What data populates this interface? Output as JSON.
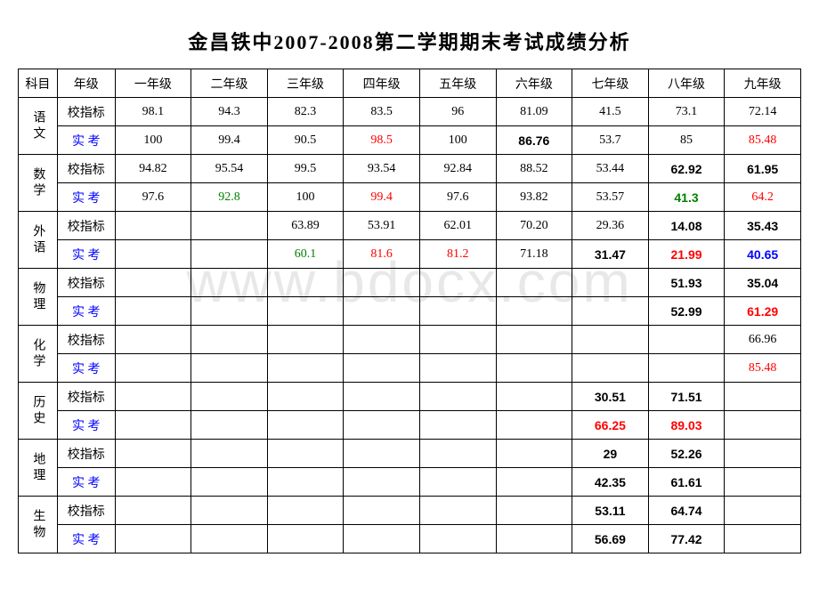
{
  "title": "金昌铁中2007-2008第二学期期末考试成绩分析",
  "watermark": "www.bdocx.com",
  "headers": {
    "subject": "科目",
    "grade_label": "年级",
    "grades": [
      "一年级",
      "二年级",
      "三年级",
      "四年级",
      "五年级",
      "六年级",
      "七年级",
      "八年级",
      "九年级"
    ]
  },
  "row_types": {
    "target": "校指标",
    "actual": "实 考"
  },
  "subjects": [
    {
      "name": "语文",
      "target": [
        {
          "v": "98.1"
        },
        {
          "v": "94.3"
        },
        {
          "v": "82.3"
        },
        {
          "v": "83.5"
        },
        {
          "v": "96"
        },
        {
          "v": "81.09"
        },
        {
          "v": "41.5"
        },
        {
          "v": "73.1"
        },
        {
          "v": "72.14"
        }
      ],
      "actual": [
        {
          "v": "100"
        },
        {
          "v": "99.4"
        },
        {
          "v": "90.5"
        },
        {
          "v": "98.5",
          "c": "red"
        },
        {
          "v": "100"
        },
        {
          "v": "86.76",
          "b": true
        },
        {
          "v": "53.7"
        },
        {
          "v": "85"
        },
        {
          "v": "85.48",
          "c": "red"
        }
      ]
    },
    {
      "name": "数学",
      "target": [
        {
          "v": "94.82"
        },
        {
          "v": "95.54"
        },
        {
          "v": "99.5"
        },
        {
          "v": "93.54"
        },
        {
          "v": "92.84"
        },
        {
          "v": "88.52"
        },
        {
          "v": "53.44"
        },
        {
          "v": "62.92",
          "b": true
        },
        {
          "v": "61.95",
          "b": true
        }
      ],
      "actual": [
        {
          "v": "97.6"
        },
        {
          "v": "92.8",
          "c": "green"
        },
        {
          "v": "100"
        },
        {
          "v": "99.4",
          "c": "red"
        },
        {
          "v": "97.6"
        },
        {
          "v": "93.82"
        },
        {
          "v": "53.57"
        },
        {
          "v": "41.3",
          "c": "green",
          "b": true
        },
        {
          "v": "64.2",
          "c": "red"
        }
      ]
    },
    {
      "name": "外语",
      "target": [
        {
          "v": ""
        },
        {
          "v": ""
        },
        {
          "v": "63.89"
        },
        {
          "v": "53.91"
        },
        {
          "v": "62.01"
        },
        {
          "v": "70.20"
        },
        {
          "v": "29.36"
        },
        {
          "v": "14.08",
          "b": true
        },
        {
          "v": "35.43",
          "b": true
        }
      ],
      "actual": [
        {
          "v": ""
        },
        {
          "v": ""
        },
        {
          "v": "60.1",
          "c": "green"
        },
        {
          "v": "81.6",
          "c": "red"
        },
        {
          "v": "81.2",
          "c": "red"
        },
        {
          "v": "71.18"
        },
        {
          "v": "31.47",
          "b": true
        },
        {
          "v": "21.99",
          "c": "red",
          "b": true
        },
        {
          "v": "40.65",
          "c": "blue",
          "b": true
        }
      ]
    },
    {
      "name": "物理",
      "target": [
        {
          "v": ""
        },
        {
          "v": ""
        },
        {
          "v": ""
        },
        {
          "v": ""
        },
        {
          "v": ""
        },
        {
          "v": ""
        },
        {
          "v": ""
        },
        {
          "v": "51.93",
          "b": true
        },
        {
          "v": "35.04",
          "b": true
        }
      ],
      "actual": [
        {
          "v": ""
        },
        {
          "v": ""
        },
        {
          "v": ""
        },
        {
          "v": ""
        },
        {
          "v": ""
        },
        {
          "v": ""
        },
        {
          "v": ""
        },
        {
          "v": "52.99",
          "b": true
        },
        {
          "v": "61.29",
          "c": "red",
          "b": true
        }
      ]
    },
    {
      "name": "化学",
      "target": [
        {
          "v": ""
        },
        {
          "v": ""
        },
        {
          "v": ""
        },
        {
          "v": ""
        },
        {
          "v": ""
        },
        {
          "v": ""
        },
        {
          "v": ""
        },
        {
          "v": ""
        },
        {
          "v": "66.96"
        }
      ],
      "actual": [
        {
          "v": ""
        },
        {
          "v": ""
        },
        {
          "v": ""
        },
        {
          "v": ""
        },
        {
          "v": ""
        },
        {
          "v": ""
        },
        {
          "v": ""
        },
        {
          "v": ""
        },
        {
          "v": "85.48",
          "c": "red"
        }
      ]
    },
    {
      "name": "历史",
      "target": [
        {
          "v": ""
        },
        {
          "v": ""
        },
        {
          "v": ""
        },
        {
          "v": ""
        },
        {
          "v": ""
        },
        {
          "v": ""
        },
        {
          "v": "30.51",
          "b": true
        },
        {
          "v": "71.51",
          "b": true
        },
        {
          "v": ""
        }
      ],
      "actual": [
        {
          "v": ""
        },
        {
          "v": ""
        },
        {
          "v": ""
        },
        {
          "v": ""
        },
        {
          "v": ""
        },
        {
          "v": ""
        },
        {
          "v": "66.25",
          "c": "red",
          "b": true
        },
        {
          "v": "89.03",
          "c": "red",
          "b": true
        },
        {
          "v": ""
        }
      ]
    },
    {
      "name": "地理",
      "target": [
        {
          "v": ""
        },
        {
          "v": ""
        },
        {
          "v": ""
        },
        {
          "v": ""
        },
        {
          "v": ""
        },
        {
          "v": ""
        },
        {
          "v": "29",
          "b": true
        },
        {
          "v": "52.26",
          "b": true
        },
        {
          "v": ""
        }
      ],
      "actual": [
        {
          "v": ""
        },
        {
          "v": ""
        },
        {
          "v": ""
        },
        {
          "v": ""
        },
        {
          "v": ""
        },
        {
          "v": ""
        },
        {
          "v": "42.35",
          "b": true
        },
        {
          "v": "61.61",
          "b": true
        },
        {
          "v": ""
        }
      ]
    },
    {
      "name": "生物",
      "target": [
        {
          "v": ""
        },
        {
          "v": ""
        },
        {
          "v": ""
        },
        {
          "v": ""
        },
        {
          "v": ""
        },
        {
          "v": ""
        },
        {
          "v": "53.11",
          "b": true
        },
        {
          "v": "64.74",
          "b": true
        },
        {
          "v": ""
        }
      ],
      "actual": [
        {
          "v": ""
        },
        {
          "v": ""
        },
        {
          "v": ""
        },
        {
          "v": ""
        },
        {
          "v": ""
        },
        {
          "v": ""
        },
        {
          "v": "56.69",
          "b": true
        },
        {
          "v": "77.42",
          "b": true
        },
        {
          "v": ""
        }
      ]
    }
  ]
}
